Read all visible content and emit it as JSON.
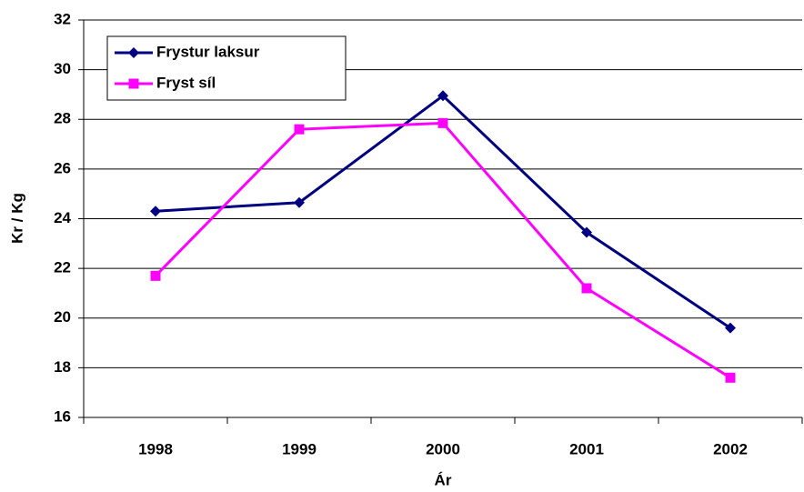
{
  "chart_data": {
    "type": "line",
    "categories": [
      "1998",
      "1999",
      "2000",
      "2001",
      "2002"
    ],
    "series": [
      {
        "name": "Frystur laksur",
        "color": "#000080",
        "marker": "diamond",
        "values": [
          24.3,
          24.65,
          28.95,
          23.45,
          19.6
        ]
      },
      {
        "name": "Fryst síl",
        "color": "#ff00ff",
        "marker": "square",
        "values": [
          21.7,
          27.6,
          27.85,
          21.2,
          17.6
        ]
      }
    ],
    "ylim": [
      16,
      32
    ],
    "yticks": [
      16,
      18,
      20,
      22,
      24,
      26,
      28,
      30,
      32
    ],
    "ylabel": "Kr / Kg",
    "xlabel": "Ár",
    "grid": true,
    "legend": "upper left"
  }
}
